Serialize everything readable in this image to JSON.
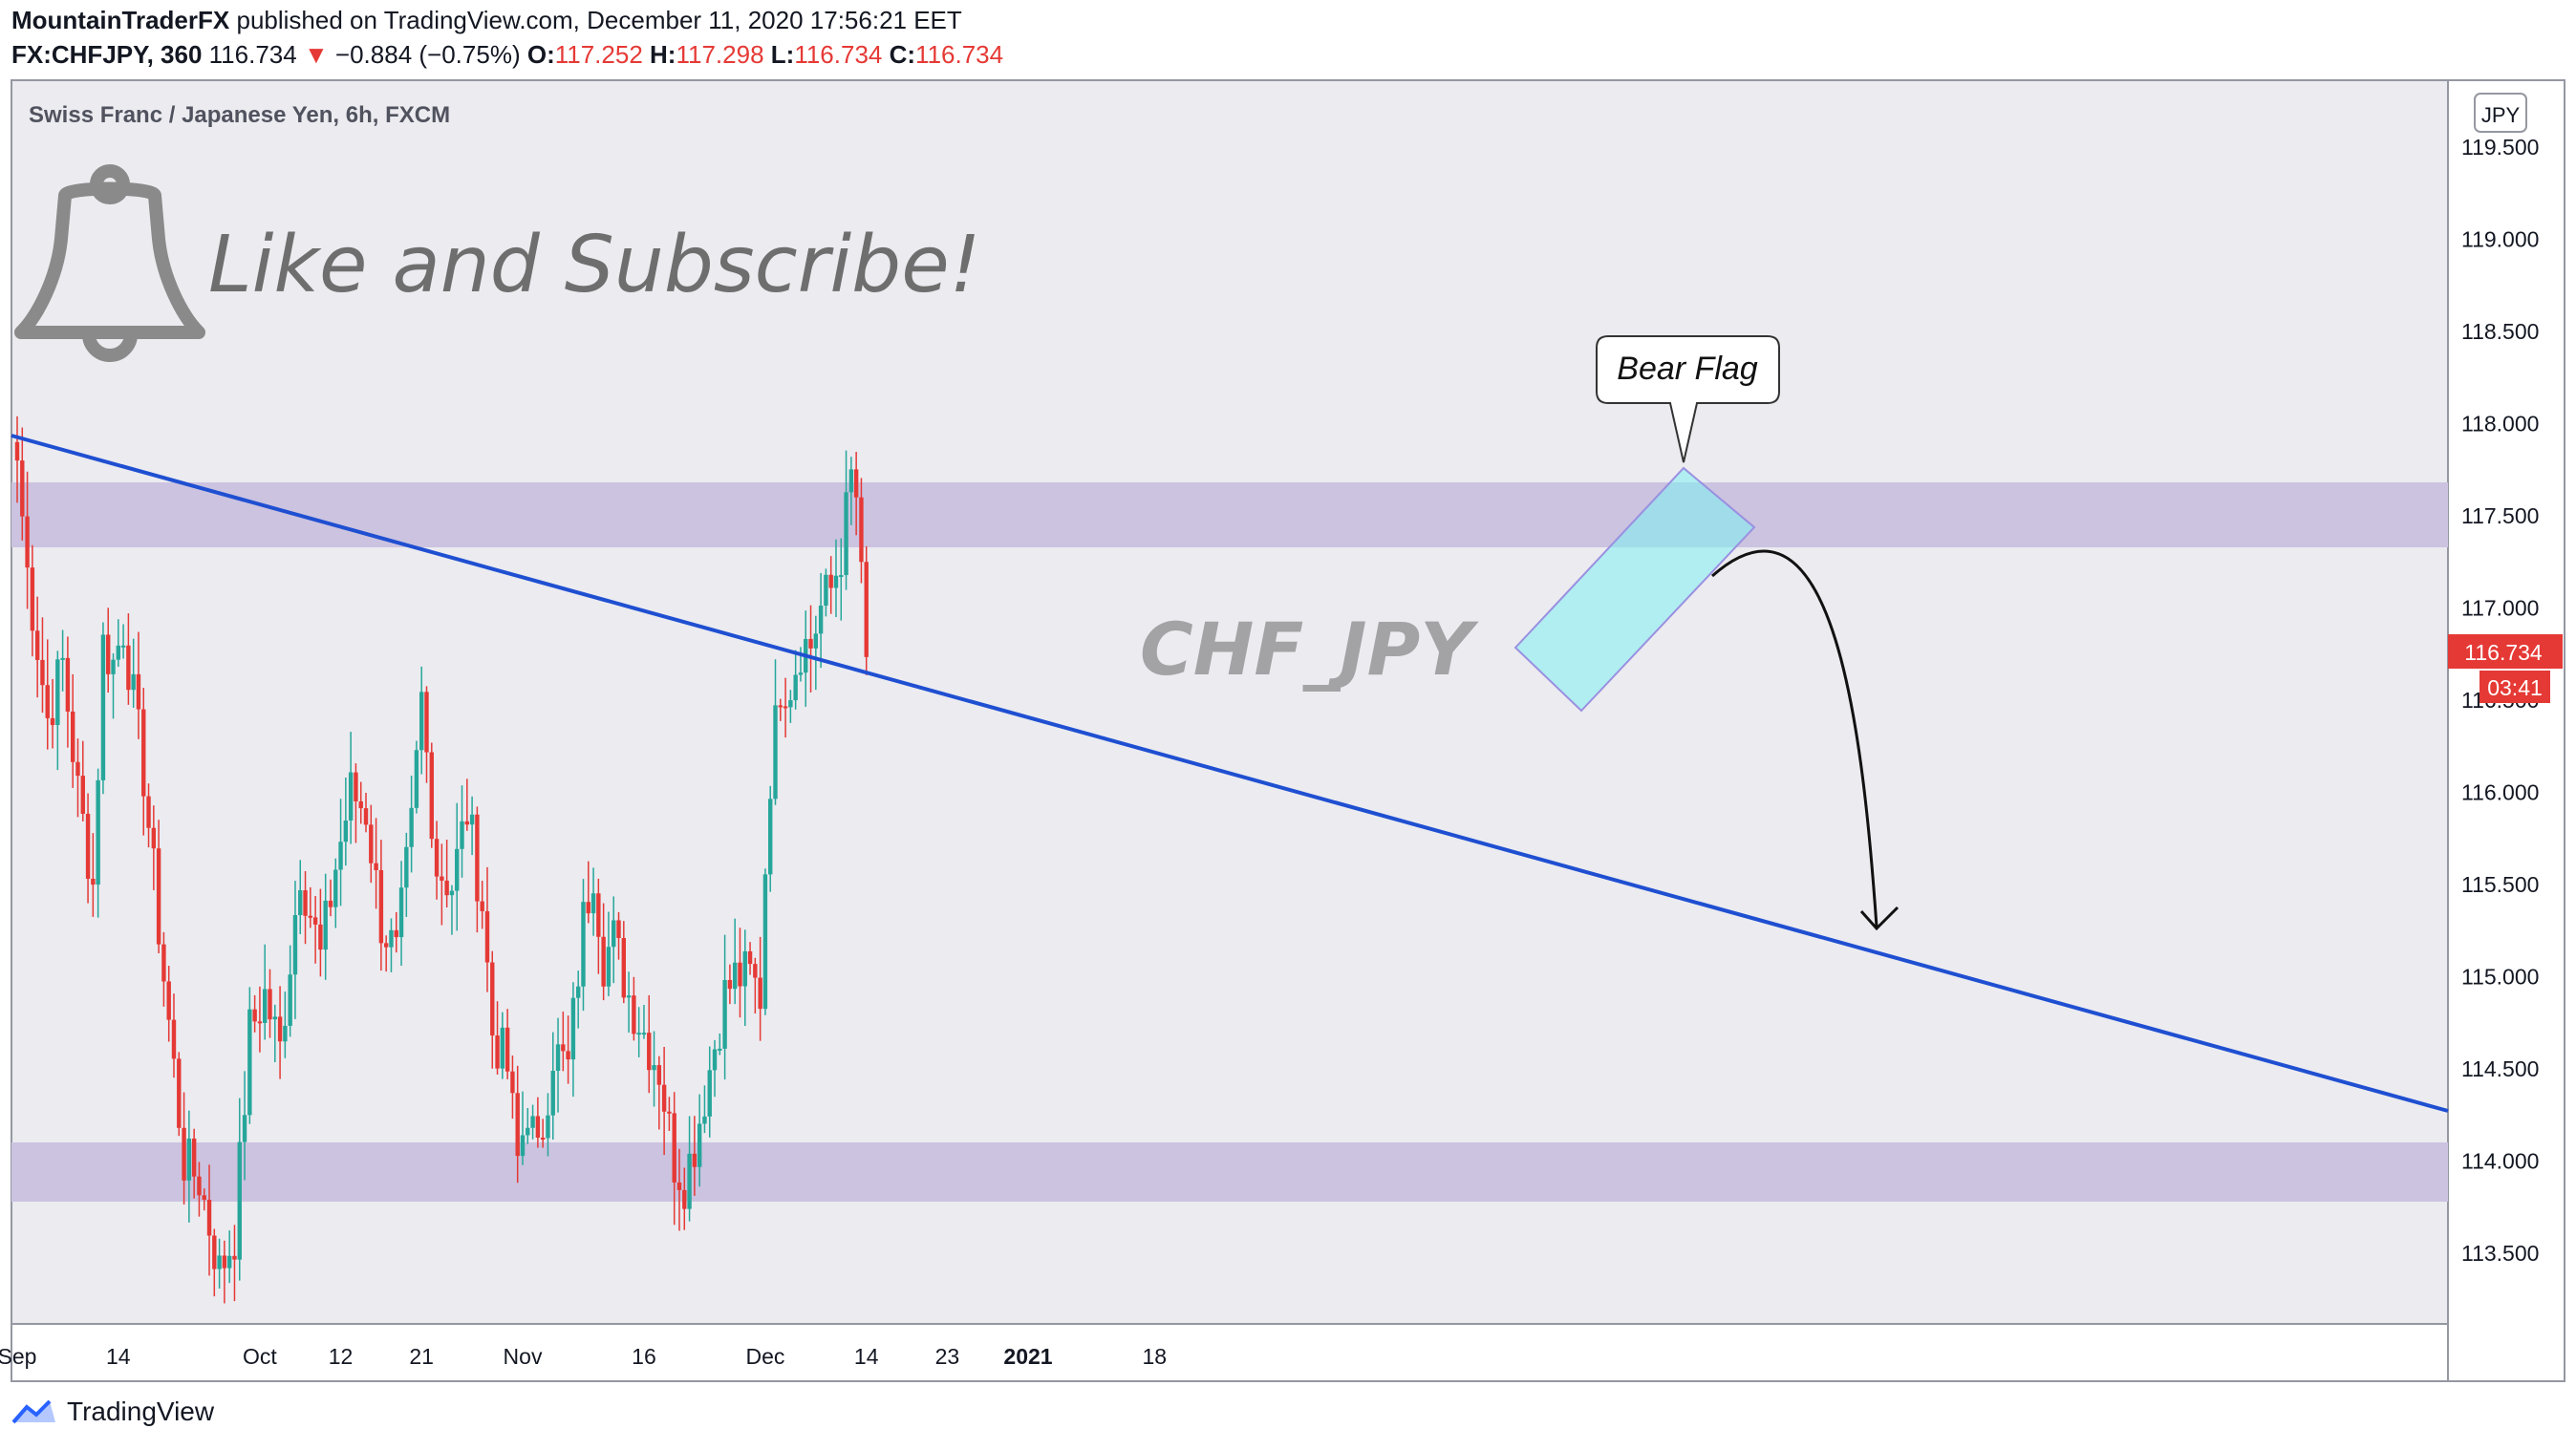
{
  "header": {
    "publisher": "MountainTraderFX",
    "published_text": "published on TradingView.com, December 11, 2020 17:56:21 EET",
    "symbol": "FX:CHFJPY, 360",
    "last": "116.734",
    "change_arrow": "▼",
    "change": "−0.884 (−0.75%)",
    "o_label": "O:",
    "o_value": "117.252",
    "h_label": "H:",
    "h_value": "117.298",
    "l_label": "L:",
    "l_value": "116.734",
    "c_label": "C:",
    "c_value": "116.734"
  },
  "footer": {
    "brand": "TradingView",
    "logo_icon": "tradingview-logo-icon"
  },
  "annotations": {
    "instrument_title": "Swiss Franc / Japanese Yen, 6h, FXCM",
    "subscribe_text": "Like and Subscribe!",
    "bell_icon": "bell-icon",
    "watermark": "CHF_JPY",
    "pattern_label": "Bear Flag"
  },
  "axis": {
    "currency": "JPY",
    "price_label": "116.734",
    "countdown": "03:41"
  },
  "colors": {
    "up": "#26a69a",
    "down": "#e53935",
    "zone": "#cbc3e0",
    "trend": "#1f4fd1",
    "flag": "#7ff0f2",
    "panel": "#ebebf0"
  },
  "chart_data": {
    "type": "candlestick",
    "title": "Swiss Franc / Japanese Yen, 6h, FXCM",
    "ylim": [
      113.1,
      119.7
    ],
    "y_ticks": [
      "119.500",
      "119.000",
      "118.500",
      "118.000",
      "117.500",
      "117.000",
      "116.500",
      "116.000",
      "115.500",
      "115.000",
      "114.500",
      "114.000",
      "113.500"
    ],
    "x_ticks": [
      {
        "label": "Sep",
        "bar": 0
      },
      {
        "label": "14",
        "bar": 20
      },
      {
        "label": "Oct",
        "bar": 48
      },
      {
        "label": "12",
        "bar": 64
      },
      {
        "label": "21",
        "bar": 80
      },
      {
        "label": "Nov",
        "bar": 100
      },
      {
        "label": "16",
        "bar": 124
      },
      {
        "label": "Dec",
        "bar": 148
      },
      {
        "label": "14",
        "bar": 168
      },
      {
        "label": "23",
        "bar": 184
      },
      {
        "label": "2021",
        "bar": 200
      },
      {
        "label": "18",
        "bar": 225
      }
    ],
    "anchors": [
      [
        0,
        117.8
      ],
      [
        2,
        117.2
      ],
      [
        6,
        116.4
      ],
      [
        9,
        116.7
      ],
      [
        12,
        116.0
      ],
      [
        15,
        115.5
      ],
      [
        17,
        116.8
      ],
      [
        19,
        116.7
      ],
      [
        21,
        116.9
      ],
      [
        25,
        116.1
      ],
      [
        29,
        115.0
      ],
      [
        33,
        114.0
      ],
      [
        36,
        113.9
      ],
      [
        40,
        113.4
      ],
      [
        43,
        113.6
      ],
      [
        46,
        114.7
      ],
      [
        49,
        114.9
      ],
      [
        52,
        114.6
      ],
      [
        56,
        115.6
      ],
      [
        60,
        115.1
      ],
      [
        63,
        115.6
      ],
      [
        66,
        116.0
      ],
      [
        69,
        115.9
      ],
      [
        72,
        115.3
      ],
      [
        75,
        115.1
      ],
      [
        78,
        115.8
      ],
      [
        80,
        116.5
      ],
      [
        83,
        115.6
      ],
      [
        86,
        115.5
      ],
      [
        89,
        115.9
      ],
      [
        92,
        115.4
      ],
      [
        94,
        114.7
      ],
      [
        97,
        114.5
      ],
      [
        99,
        114.0
      ],
      [
        101,
        114.3
      ],
      [
        103,
        114.0
      ],
      [
        106,
        114.6
      ],
      [
        109,
        114.5
      ],
      [
        112,
        115.3
      ],
      [
        114,
        115.6
      ],
      [
        116,
        115.1
      ],
      [
        118,
        115.2
      ],
      [
        121,
        114.9
      ],
      [
        124,
        114.7
      ],
      [
        127,
        114.5
      ],
      [
        130,
        114.0
      ],
      [
        132,
        113.9
      ],
      [
        134,
        114.1
      ],
      [
        137,
        114.5
      ],
      [
        140,
        114.9
      ],
      [
        142,
        115.0
      ],
      [
        145,
        115.0
      ],
      [
        147,
        114.9
      ],
      [
        148,
        115.6
      ],
      [
        149,
        116.1
      ],
      [
        151,
        116.6
      ],
      [
        153,
        116.6
      ],
      [
        155,
        116.8
      ],
      [
        157,
        116.8
      ],
      [
        159,
        117.0
      ],
      [
        161,
        117.1
      ],
      [
        163,
        117.3
      ],
      [
        165,
        117.7
      ],
      [
        166,
        117.6
      ],
      [
        167,
        117.25
      ],
      [
        168,
        116.734
      ]
    ]
  }
}
